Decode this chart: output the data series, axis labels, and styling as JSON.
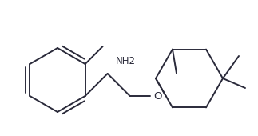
{
  "background_color": "#ffffff",
  "line_color": "#2a2a3a",
  "text_color": "#2a2a3a",
  "line_width": 1.4,
  "font_size": 8.5,
  "nh2_label": "NH2",
  "o_label": "O",
  "figsize": [
    3.23,
    1.7
  ],
  "dpi": 100
}
